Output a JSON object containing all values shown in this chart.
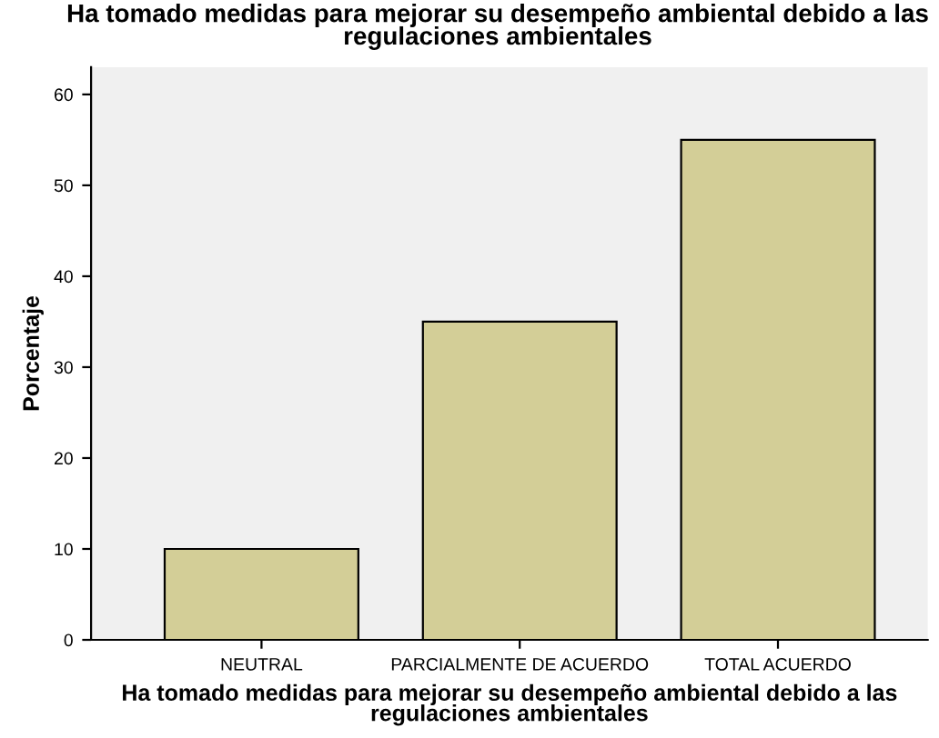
{
  "chart_data": {
    "type": "bar",
    "title": "Ha tomado medidas para mejorar su desempeño ambiental debido a las regulaciones ambientales",
    "xlabel": "Ha tomado medidas para mejorar su desempeño ambiental debido a las regulaciones ambientales",
    "ylabel": "Porcentaje",
    "categories": [
      "NEUTRAL",
      "PARCIALMENTE DE ACUERDO",
      "TOTAL ACUERDO"
    ],
    "values": [
      10,
      35,
      55
    ],
    "color": "#d3ce97",
    "ylim": [
      0,
      63
    ],
    "yticks": [
      0,
      10,
      20,
      30,
      40,
      50,
      60
    ],
    "grid": false
  }
}
